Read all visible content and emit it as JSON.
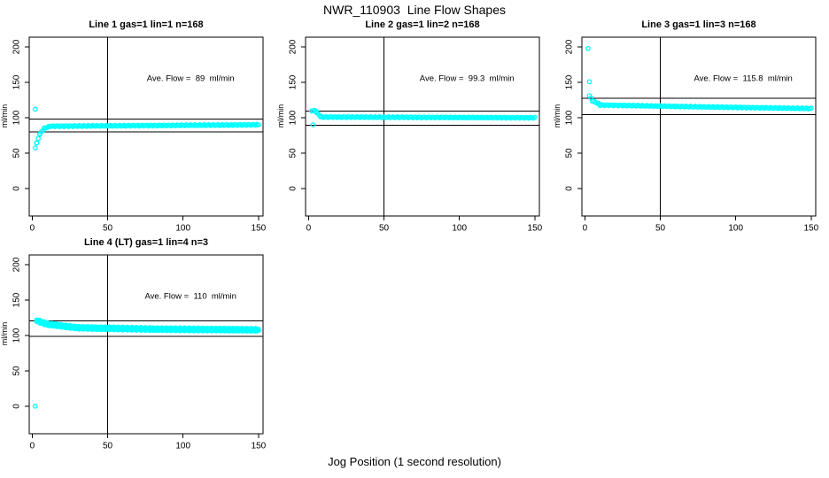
{
  "figure": {
    "title": "NWR_110903  Line Flow Shapes",
    "xlabel": "Jog Position (1 second resolution)"
  },
  "colors": {
    "points": "#00FFFF",
    "axis": "#000000",
    "background": "#FFFFFF"
  },
  "chart_data": [
    {
      "type": "scatter",
      "title": "Line 1 gas=1 lin=1 n=168",
      "annotation": "Ave. Flow =  89  ml/min",
      "ave_flow_ml_min": 89,
      "n_points": 168,
      "ylabel": "ml/min",
      "xlim": [
        0,
        150
      ],
      "ylim": [
        0,
        200
      ],
      "xticks": [
        "0",
        "50",
        "100",
        "150"
      ],
      "yticks": [
        "0",
        "50",
        "100",
        "150",
        "200"
      ],
      "vline_x": 50,
      "hlines_y": [
        97.9,
        80.1
      ],
      "outliers": [
        [
          2,
          112
        ]
      ],
      "trend_runs": [
        [
          2,
          3,
          58,
          64
        ],
        [
          3,
          5,
          64,
          77
        ],
        [
          5,
          8,
          77,
          85
        ],
        [
          8,
          12,
          85,
          88
        ],
        [
          12,
          150,
          88,
          90
        ]
      ],
      "overlap_series": 1
    },
    {
      "type": "scatter",
      "title": "Line 2 gas=1 lin=2 n=168",
      "annotation": "Ave. Flow =  99.3  ml/min",
      "ave_flow_ml_min": 99.3,
      "n_points": 168,
      "ylabel": "ml/min",
      "xlim": [
        0,
        150
      ],
      "ylim": [
        0,
        200
      ],
      "xticks": [
        "0",
        "50",
        "100",
        "150"
      ],
      "yticks": [
        "0",
        "50",
        "100",
        "150",
        "200"
      ],
      "vline_x": 50,
      "hlines_y": [
        109.2,
        89.4
      ],
      "outliers": [
        [
          3,
          90
        ]
      ],
      "trend_runs": [
        [
          2,
          5,
          110,
          110
        ],
        [
          5,
          8,
          108,
          102
        ],
        [
          8,
          150,
          101,
          100
        ]
      ],
      "overlap_series": 1
    },
    {
      "type": "scatter",
      "title": "Line 3 gas=1 lin=3 n=168",
      "annotation": "Ave. Flow =  115.8  ml/min",
      "ave_flow_ml_min": 115.8,
      "n_points": 168,
      "ylabel": "ml/min",
      "xlim": [
        0,
        150
      ],
      "ylim": [
        0,
        200
      ],
      "xticks": [
        "0",
        "50",
        "100",
        "150"
      ],
      "yticks": [
        "0",
        "50",
        "100",
        "150",
        "200"
      ],
      "vline_x": 50,
      "hlines_y": [
        127.4,
        104.2
      ],
      "outliers": [
        [
          2,
          198
        ],
        [
          3,
          151
        ]
      ],
      "trend_runs": [
        [
          3,
          5,
          131,
          124
        ],
        [
          5,
          10,
          124,
          119
        ],
        [
          10,
          60,
          118,
          116
        ],
        [
          60,
          150,
          116,
          113
        ]
      ],
      "overlap_series": 1
    },
    {
      "type": "scatter",
      "title": "Line 4 (LT) gas=1 lin=4 n=3",
      "annotation": "Ave. Flow =  110  ml/min",
      "ave_flow_ml_min": 110,
      "n_points": 3,
      "ylabel": "ml/min",
      "xlim": [
        0,
        150
      ],
      "ylim": [
        0,
        200
      ],
      "xticks": [
        "0",
        "50",
        "100",
        "150"
      ],
      "yticks": [
        "0",
        "50",
        "100",
        "150",
        "200"
      ],
      "vline_x": 50,
      "hlines_y": [
        121,
        99
      ],
      "outliers": [
        [
          2,
          0
        ]
      ],
      "trend_runs": [
        [
          3,
          10,
          121,
          116
        ],
        [
          10,
          30,
          116,
          111
        ],
        [
          30,
          80,
          111,
          109
        ],
        [
          80,
          150,
          109,
          108
        ]
      ],
      "overlap_series": 3
    }
  ]
}
